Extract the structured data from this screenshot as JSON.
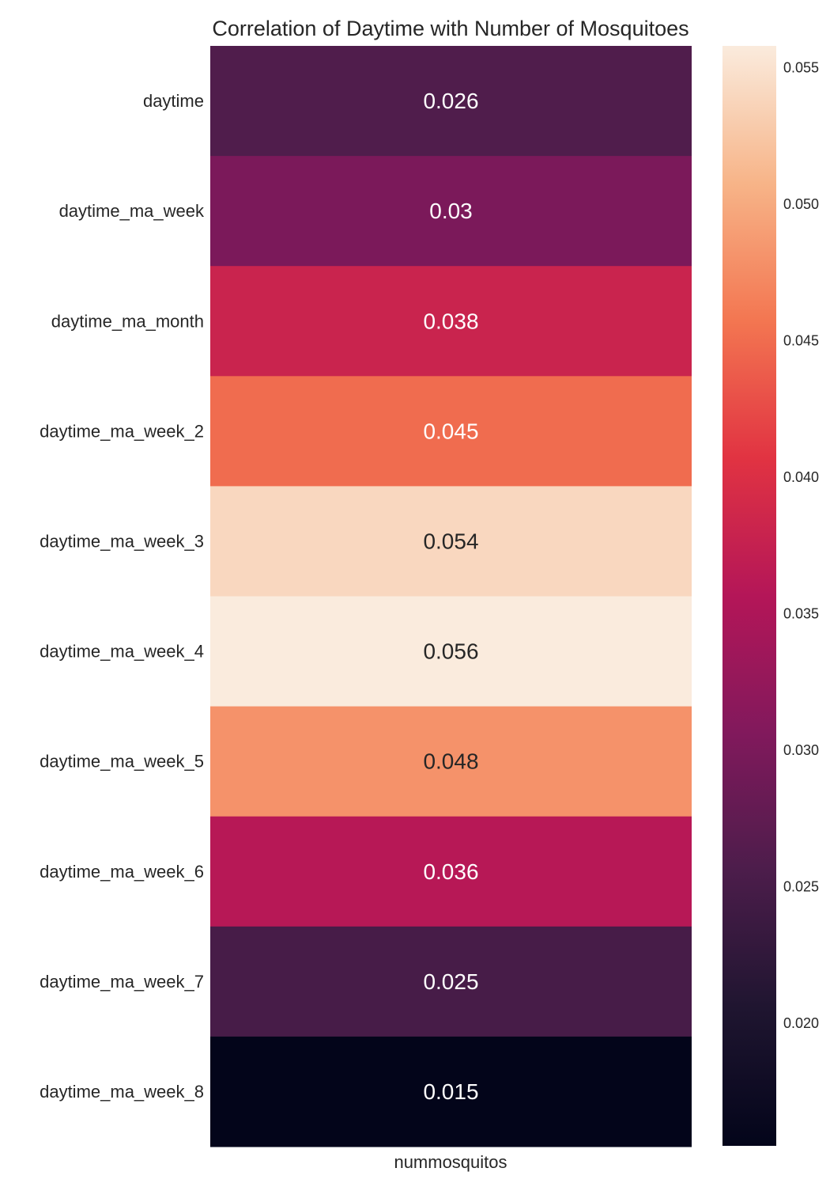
{
  "chart_data": {
    "type": "heatmap",
    "title": "Correlation of Daytime with Number of Mosquitoes",
    "columns": [
      "nummosquitos"
    ],
    "rows": [
      "daytime",
      "daytime_ma_week",
      "daytime_ma_month",
      "daytime_ma_week_2",
      "daytime_ma_week_3",
      "daytime_ma_week_4",
      "daytime_ma_week_5",
      "daytime_ma_week_6",
      "daytime_ma_week_7",
      "daytime_ma_week_8"
    ],
    "values": [
      0.026,
      0.03,
      0.038,
      0.045,
      0.054,
      0.056,
      0.048,
      0.036,
      0.025,
      0.015
    ],
    "value_labels": [
      "0.026",
      "0.03",
      "0.038",
      "0.045",
      "0.054",
      "0.056",
      "0.048",
      "0.036",
      "0.025",
      "0.015"
    ],
    "colorbar": {
      "range": [
        0.0155,
        0.0558
      ],
      "ticks": [
        0.02,
        0.025,
        0.03,
        0.035,
        0.04,
        0.045,
        0.05,
        0.055
      ],
      "tick_labels": [
        "0.020",
        "0.025",
        "0.030",
        "0.035",
        "0.040",
        "0.045",
        "0.050",
        "0.055"
      ],
      "placement": "right",
      "colormap": "rocket"
    },
    "grid": false
  }
}
